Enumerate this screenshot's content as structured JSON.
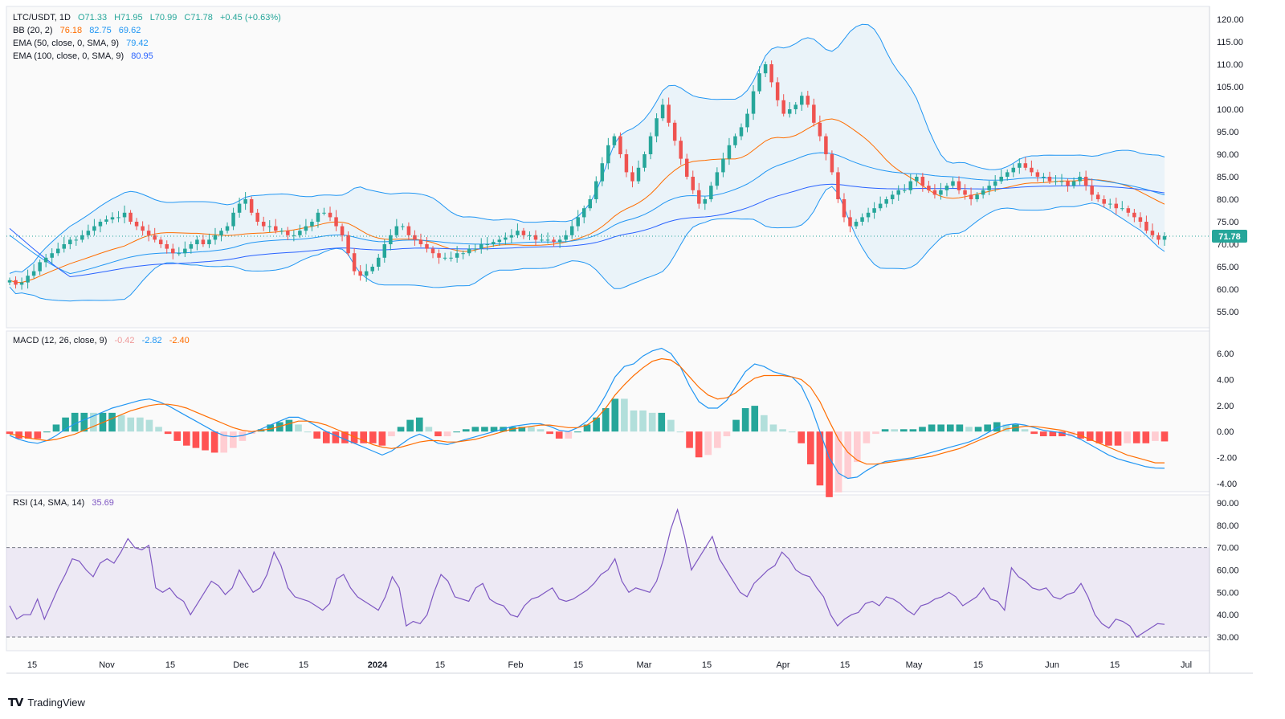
{
  "header": {
    "symbol": "LTC/USDT, 1D",
    "open": "O71.33",
    "high": "H71.95",
    "low": "L70.99",
    "close": "C71.78",
    "change": "+0.45 (+0.63%)"
  },
  "legends": {
    "bb": {
      "label": "BB (20, 2)",
      "basis": "76.18",
      "upper": "82.75",
      "lower": "69.62"
    },
    "ema50": {
      "label": "EMA (50, close, 0, SMA, 9)",
      "value": "79.42"
    },
    "ema100": {
      "label": "EMA (100, close, 0, SMA, 9)",
      "value": "80.95"
    },
    "macd": {
      "label": "MACD (12, 26, close, 9)",
      "hist": "-0.42",
      "macd": "-2.82",
      "signal": "-2.40"
    },
    "rsi": {
      "label": "RSI (14, SMA, 14)",
      "value": "35.69"
    }
  },
  "price_badge": "71.78",
  "brand": "TradingView",
  "colors": {
    "up": "#26a69a",
    "down": "#ef5350",
    "bb_band": "#2196f3",
    "bb_basis": "#ff6d00",
    "ema100": "#2962ff",
    "macd_line": "#2196f3",
    "signal_line": "#ff6d00",
    "rsi": "#7e57c2",
    "badge": "#26a69a"
  },
  "chart_data": [
    {
      "type": "candlestick",
      "title": "LTC/USDT, 1D",
      "ylim": [
        50,
        120
      ],
      "y_ticks": [
        "120.00",
        "115.00",
        "110.00",
        "105.00",
        "100.00",
        "95.00",
        "90.00",
        "85.00",
        "80.00",
        "75.00",
        "70.00",
        "65.00",
        "60.00",
        "55.00"
      ],
      "x_ticks": [
        "15",
        "Nov",
        "15",
        "Dec",
        "15",
        "2024",
        "15",
        "Feb",
        "15",
        "Mar",
        "15",
        "Apr",
        "15",
        "May",
        "15",
        "Jun",
        "15",
        "Jul"
      ],
      "close_approx": [
        62,
        61,
        61.5,
        63,
        64,
        66,
        67,
        68,
        69,
        70,
        71,
        71,
        72,
        73,
        74,
        75,
        75.5,
        76,
        76,
        77,
        75,
        74,
        73,
        72,
        71,
        70,
        69,
        68,
        68,
        69,
        70,
        71,
        70,
        71,
        72,
        73,
        74,
        77,
        79,
        80,
        77,
        75,
        74,
        74,
        73,
        73,
        72,
        72,
        73,
        74,
        75,
        77,
        77,
        76,
        74,
        72,
        68,
        64,
        63,
        64,
        65,
        67,
        70,
        72,
        74,
        74,
        72,
        71,
        70,
        69,
        68,
        67,
        67,
        67,
        68,
        68,
        69,
        69,
        70,
        70,
        70.5,
        71,
        71.5,
        72,
        73,
        72,
        72,
        71,
        71,
        71,
        70.5,
        71,
        72,
        74,
        76,
        78,
        80,
        84,
        88,
        92,
        94,
        90,
        86,
        84,
        87,
        90,
        94,
        98,
        101,
        97,
        93,
        89,
        85,
        82,
        79,
        80,
        83,
        86,
        89,
        92,
        94,
        96,
        99,
        104,
        108,
        110,
        106,
        102,
        99,
        100,
        101,
        103,
        101,
        97,
        94,
        90,
        86,
        80,
        76,
        74,
        75,
        76,
        77,
        78,
        79,
        80,
        81,
        82,
        82,
        84,
        85,
        83,
        82,
        81,
        82,
        83,
        84,
        82,
        81,
        80,
        81,
        82,
        83,
        84,
        85,
        86,
        87,
        88,
        87,
        86,
        85,
        85,
        84,
        84,
        84,
        83,
        84,
        85,
        83,
        81,
        80,
        79,
        79,
        78,
        78,
        77,
        76,
        75,
        73,
        72,
        71,
        71.8
      ],
      "last": 71.78
    },
    {
      "type": "line",
      "title": "MACD (12, 26, close, 9)",
      "ylim": [
        -4.5,
        6.5
      ],
      "y_ticks": [
        "6.00",
        "4.00",
        "2.00",
        "0.00",
        "-2.00",
        "-4.00"
      ],
      "series": [
        {
          "name": "MACD",
          "values": [
            -0.3,
            -0.6,
            -0.8,
            -0.9,
            -0.7,
            -0.3,
            0.2,
            0.6,
            0.9,
            1.2,
            1.5,
            1.8,
            2.0,
            2.2,
            2.4,
            2.5,
            2.3,
            2.0,
            1.6,
            1.2,
            0.8,
            0.4,
            0.0,
            -0.3,
            -0.4,
            -0.3,
            -0.1,
            0.2,
            0.5,
            0.8,
            1.1,
            1.1,
            0.8,
            0.4,
            0.0,
            -0.3,
            -0.6,
            -0.9,
            -1.2,
            -1.5,
            -1.8,
            -1.5,
            -1.0,
            -0.5,
            -0.2,
            -0.5,
            -0.9,
            -1.0,
            -0.8,
            -0.6,
            -0.4,
            -0.2,
            0.0,
            0.2,
            0.4,
            0.5,
            0.6,
            0.6,
            0.4,
            0.1,
            0.0,
            0.3,
            0.8,
            1.6,
            2.8,
            4.2,
            5.0,
            5.2,
            5.8,
            6.2,
            6.4,
            6.0,
            5.0,
            3.5,
            2.3,
            1.8,
            1.8,
            2.4,
            3.5,
            4.6,
            5.2,
            5.0,
            4.6,
            4.4,
            4.2,
            3.5,
            2.0,
            0.0,
            -2.0,
            -3.2,
            -3.6,
            -3.5,
            -3.0,
            -2.6,
            -2.3,
            -2.2,
            -2.1,
            -2.0,
            -1.8,
            -1.6,
            -1.4,
            -1.2,
            -1.0,
            -0.8,
            -0.5,
            -0.1,
            0.3,
            0.5,
            0.6,
            0.5,
            0.3,
            0.1,
            0.0,
            -0.1,
            -0.3,
            -0.6,
            -1.0,
            -1.4,
            -1.8,
            -2.1,
            -2.3,
            -2.5,
            -2.7,
            -2.8,
            -2.82
          ]
        },
        {
          "name": "Signal",
          "values": [
            -0.2,
            -0.3,
            -0.5,
            -0.6,
            -0.7,
            -0.6,
            -0.4,
            -0.2,
            0.1,
            0.4,
            0.7,
            1.0,
            1.3,
            1.6,
            1.8,
            2.0,
            2.1,
            2.1,
            2.0,
            1.8,
            1.5,
            1.2,
            0.9,
            0.6,
            0.3,
            0.1,
            0.0,
            0.1,
            0.2,
            0.4,
            0.6,
            0.8,
            0.8,
            0.7,
            0.5,
            0.2,
            -0.1,
            -0.4,
            -0.7,
            -1.0,
            -1.2,
            -1.3,
            -1.2,
            -1.0,
            -0.8,
            -0.7,
            -0.7,
            -0.8,
            -0.8,
            -0.7,
            -0.6,
            -0.4,
            -0.2,
            0.0,
            0.2,
            0.3,
            0.4,
            0.5,
            0.5,
            0.4,
            0.3,
            0.3,
            0.5,
            1.0,
            1.8,
            2.8,
            3.6,
            4.3,
            4.9,
            5.4,
            5.6,
            5.5,
            5.0,
            4.2,
            3.4,
            2.8,
            2.5,
            2.6,
            3.0,
            3.6,
            4.1,
            4.3,
            4.3,
            4.3,
            4.2,
            4.0,
            3.4,
            2.3,
            0.8,
            -0.6,
            -1.6,
            -2.2,
            -2.5,
            -2.5,
            -2.4,
            -2.3,
            -2.2,
            -2.1,
            -2.0,
            -1.9,
            -1.7,
            -1.5,
            -1.3,
            -1.0,
            -0.7,
            -0.4,
            -0.1,
            0.2,
            0.3,
            0.4,
            0.4,
            0.3,
            0.2,
            0.1,
            -0.1,
            -0.3,
            -0.6,
            -0.9,
            -1.2,
            -1.5,
            -1.8,
            -2.0,
            -2.2,
            -2.4,
            -2.4
          ]
        }
      ]
    },
    {
      "type": "line",
      "title": "RSI (14, SMA, 14)",
      "ylim": [
        25,
        92
      ],
      "y_ticks": [
        "90.00",
        "80.00",
        "70.00",
        "60.00",
        "50.00",
        "40.00",
        "30.00"
      ],
      "bands": [
        30,
        70
      ],
      "series": [
        {
          "name": "RSI",
          "values": [
            44,
            38,
            40,
            40,
            47,
            38,
            45,
            52,
            58,
            65,
            64,
            60,
            57,
            63,
            65,
            63,
            68,
            74,
            70,
            69,
            71,
            52,
            50,
            52,
            48,
            46,
            40,
            45,
            50,
            55,
            53,
            49,
            52,
            60,
            55,
            50,
            52,
            58,
            68,
            62,
            52,
            48,
            47,
            46,
            44,
            42,
            45,
            56,
            58,
            52,
            48,
            46,
            44,
            42,
            48,
            57,
            52,
            35,
            37,
            36,
            40,
            50,
            58,
            55,
            48,
            47,
            46,
            52,
            54,
            47,
            45,
            44,
            40,
            39,
            44,
            47,
            48,
            50,
            52,
            47,
            46,
            47,
            49,
            51,
            54,
            58,
            60,
            65,
            55,
            50,
            52,
            51,
            50,
            55,
            65,
            78,
            87,
            75,
            60,
            65,
            70,
            75,
            65,
            60,
            55,
            50,
            48,
            54,
            57,
            60,
            62,
            68,
            65,
            60,
            58,
            57,
            52,
            48,
            40,
            35,
            38,
            40,
            41,
            45,
            46,
            44,
            48,
            47,
            45,
            42,
            40,
            44,
            45,
            47,
            48,
            50,
            48,
            44,
            46,
            48,
            52,
            47,
            46,
            42,
            61,
            57,
            55,
            52,
            51,
            52,
            48,
            47,
            49,
            50,
            54,
            48,
            40,
            36,
            34,
            38,
            37,
            35,
            30,
            32,
            34,
            36,
            35.69
          ]
        }
      ]
    }
  ]
}
